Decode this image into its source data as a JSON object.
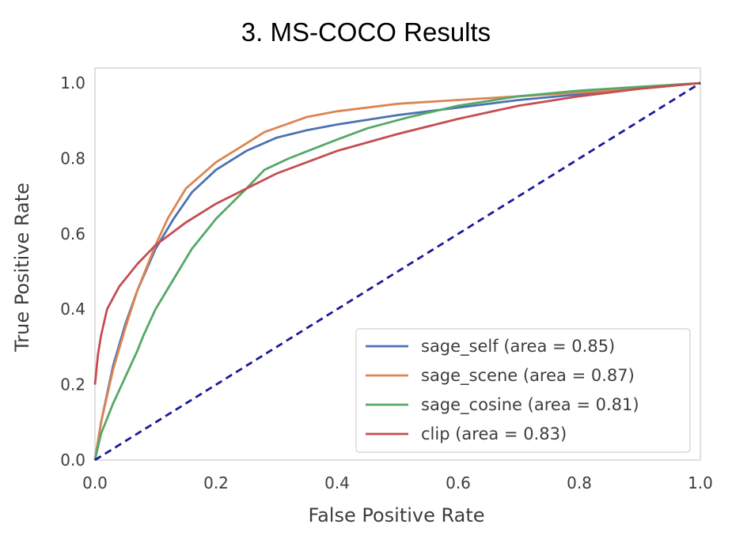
{
  "chart_data": {
    "type": "line",
    "title": "3. MS-COCO Results",
    "xlabel": "False Positive Rate",
    "ylabel": "True Positive Rate",
    "xlim": [
      0,
      1
    ],
    "ylim": [
      0,
      1.04
    ],
    "xticks": [
      "0.0",
      "0.2",
      "0.4",
      "0.6",
      "0.8",
      "1.0"
    ],
    "yticks": [
      "0.0",
      "0.2",
      "0.4",
      "0.6",
      "0.8",
      "1.0"
    ],
    "grid": false,
    "legend_position": "lower-right",
    "colors": {
      "sage_self": "#4c72b0",
      "sage_scene": "#dd8452",
      "sage_cosine": "#55a868",
      "clip": "#c44e52",
      "diagonal": "#1a1a99"
    },
    "series": [
      {
        "name": "sage_self (area = 0.85)",
        "color": "#4c72b0",
        "points": [
          [
            0,
            0
          ],
          [
            0.01,
            0.1
          ],
          [
            0.03,
            0.25
          ],
          [
            0.05,
            0.36
          ],
          [
            0.07,
            0.45
          ],
          [
            0.1,
            0.56
          ],
          [
            0.13,
            0.64
          ],
          [
            0.16,
            0.71
          ],
          [
            0.2,
            0.77
          ],
          [
            0.25,
            0.82
          ],
          [
            0.3,
            0.855
          ],
          [
            0.35,
            0.875
          ],
          [
            0.4,
            0.89
          ],
          [
            0.5,
            0.915
          ],
          [
            0.6,
            0.935
          ],
          [
            0.7,
            0.955
          ],
          [
            0.8,
            0.97
          ],
          [
            0.9,
            0.985
          ],
          [
            1,
            1
          ]
        ]
      },
      {
        "name": "sage_scene (area = 0.87)",
        "color": "#dd8452",
        "points": [
          [
            0,
            0
          ],
          [
            0.01,
            0.1
          ],
          [
            0.03,
            0.24
          ],
          [
            0.05,
            0.35
          ],
          [
            0.07,
            0.45
          ],
          [
            0.1,
            0.57
          ],
          [
            0.12,
            0.64
          ],
          [
            0.15,
            0.72
          ],
          [
            0.2,
            0.79
          ],
          [
            0.25,
            0.84
          ],
          [
            0.28,
            0.87
          ],
          [
            0.35,
            0.91
          ],
          [
            0.4,
            0.925
          ],
          [
            0.5,
            0.945
          ],
          [
            0.6,
            0.955
          ],
          [
            0.7,
            0.965
          ],
          [
            0.8,
            0.975
          ],
          [
            0.9,
            0.985
          ],
          [
            1,
            1
          ]
        ]
      },
      {
        "name": "sage_cosine (area = 0.81)",
        "color": "#55a868",
        "points": [
          [
            0,
            0
          ],
          [
            0.01,
            0.07
          ],
          [
            0.03,
            0.15
          ],
          [
            0.05,
            0.22
          ],
          [
            0.07,
            0.29
          ],
          [
            0.08,
            0.33
          ],
          [
            0.1,
            0.4
          ],
          [
            0.13,
            0.48
          ],
          [
            0.16,
            0.56
          ],
          [
            0.2,
            0.64
          ],
          [
            0.25,
            0.72
          ],
          [
            0.28,
            0.77
          ],
          [
            0.32,
            0.8
          ],
          [
            0.4,
            0.85
          ],
          [
            0.45,
            0.88
          ],
          [
            0.52,
            0.91
          ],
          [
            0.6,
            0.94
          ],
          [
            0.7,
            0.965
          ],
          [
            0.8,
            0.98
          ],
          [
            0.9,
            0.99
          ],
          [
            1,
            1
          ]
        ]
      },
      {
        "name": "clip (area = 0.83)",
        "color": "#c44e52",
        "points": [
          [
            0,
            0.2
          ],
          [
            0.005,
            0.28
          ],
          [
            0.01,
            0.33
          ],
          [
            0.02,
            0.4
          ],
          [
            0.04,
            0.46
          ],
          [
            0.07,
            0.52
          ],
          [
            0.1,
            0.57
          ],
          [
            0.15,
            0.63
          ],
          [
            0.2,
            0.68
          ],
          [
            0.25,
            0.72
          ],
          [
            0.3,
            0.76
          ],
          [
            0.4,
            0.82
          ],
          [
            0.5,
            0.865
          ],
          [
            0.6,
            0.905
          ],
          [
            0.7,
            0.94
          ],
          [
            0.8,
            0.965
          ],
          [
            0.9,
            0.985
          ],
          [
            1,
            1
          ]
        ]
      }
    ],
    "diagonal": [
      [
        0,
        0
      ],
      [
        1,
        1
      ]
    ]
  }
}
